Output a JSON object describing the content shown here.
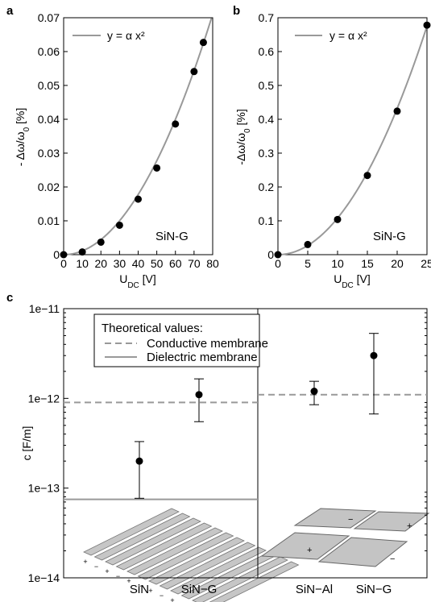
{
  "chart_data": [
    {
      "type": "scatter",
      "panel_label": "a",
      "xlabel": "U_DC [V]",
      "ylabel": "- Δω/ω0 [%]",
      "xlim": [
        0,
        80
      ],
      "ylim": [
        0,
        0.07
      ],
      "x_ticks": [
        "0",
        "10",
        "20",
        "30",
        "40",
        "50",
        "60",
        "70",
        "80"
      ],
      "y_ticks": [
        "0",
        "0.01",
        "0.02",
        "0.03",
        "0.04",
        "0.05",
        "0.06",
        "0.07"
      ],
      "legend": {
        "entry": "y = α x²",
        "placement": "top-left"
      },
      "annotation": "SiN-G",
      "fit_alpha": 1.11e-05,
      "series": [
        {
          "x": [
            0,
            10,
            20,
            30,
            40,
            50,
            60,
            70,
            75
          ],
          "y": [
            0,
            0.0008,
            0.0037,
            0.0087,
            0.0164,
            0.0256,
            0.0386,
            0.0541,
            0.0627
          ]
        }
      ]
    },
    {
      "type": "scatter",
      "panel_label": "b",
      "xlabel": "U_DC [V]",
      "ylabel": "-Δω/ω0 [%]",
      "xlim": [
        0,
        25
      ],
      "ylim": [
        0,
        0.7
      ],
      "x_ticks": [
        "0",
        "5",
        "10",
        "15",
        "20",
        "25"
      ],
      "y_ticks": [
        "0",
        "0.1",
        "0.2",
        "0.3",
        "0.4",
        "0.5",
        "0.6",
        "0.7"
      ],
      "legend": {
        "entry": "y = α x²",
        "placement": "top-left"
      },
      "annotation": "SiN-G",
      "fit_alpha": 0.00108,
      "series": [
        {
          "x": [
            0,
            5,
            10,
            15,
            20,
            25
          ],
          "y": [
            0,
            0.03,
            0.104,
            0.234,
            0.424,
            0.678
          ]
        }
      ]
    },
    {
      "type": "scatter",
      "panel_label": "c",
      "ylabel": "c [F/m]",
      "yscale": "log",
      "ylim": [
        1e-14,
        1e-11
      ],
      "y_ticks": [
        "1e−14",
        "1e−13",
        "1e−12",
        "1e−11"
      ],
      "legend": {
        "title": "Theoretical values:",
        "entries": [
          "Conductive membrane",
          "Dielectric membrane"
        ],
        "placement": "top-left"
      },
      "groups": [
        {
          "categories": [
            "SiN",
            "SiN−G"
          ],
          "values": [
            2e-13,
            1.1e-12
          ],
          "err_low": [
            7.7e-14,
            5.5e-13
          ],
          "err_high": [
            3.3e-13,
            1.65e-12
          ],
          "conductive_line": 9e-13,
          "dielectric_line": 7.5e-14
        },
        {
          "categories": [
            "SiN−Al",
            "SiN−G"
          ],
          "values": [
            1.2e-12,
            3e-12
          ],
          "err_low": [
            8.5e-13,
            6.7e-13
          ],
          "err_high": [
            1.55e-12,
            5.3e-12
          ],
          "conductive_line": 1.1e-12
        }
      ],
      "diagram_marks": [
        "+",
        "−"
      ]
    }
  ]
}
